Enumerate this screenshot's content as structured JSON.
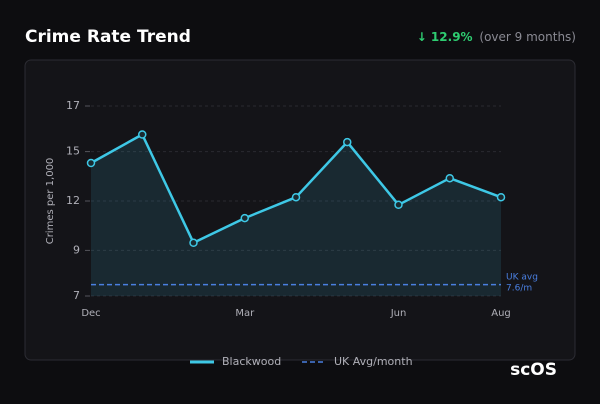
{
  "chart_data": {
    "type": "line",
    "title": "Crime Rate Trend",
    "change": "↓ 12.9%",
    "change_note": "(over 9 months)",
    "y_label": "Crimes per 1,000",
    "categories": [
      "Dec",
      null,
      null,
      "Mar",
      null,
      null,
      "Jun",
      null,
      "Aug"
    ],
    "series": [
      {
        "name": "Blackwood",
        "color": "#3ec8e6",
        "values": [
          14.0,
          15.5,
          9.8,
          11.1,
          12.2,
          15.1,
          11.8,
          13.2,
          12.2
        ]
      }
    ],
    "reference": {
      "name": "UK Avg/month",
      "value": 7.6,
      "color": "#4a7fe0",
      "label_lines": [
        "UK avg",
        "7.6/m"
      ]
    },
    "ylim": [
      7,
      17
    ],
    "yticks": [
      7,
      {
        "value": 9.4,
        "label": "9"
      },
      12,
      {
        "value": 14.6,
        "label": "15"
      },
      17
    ],
    "grid": true,
    "brand": "scOS"
  }
}
